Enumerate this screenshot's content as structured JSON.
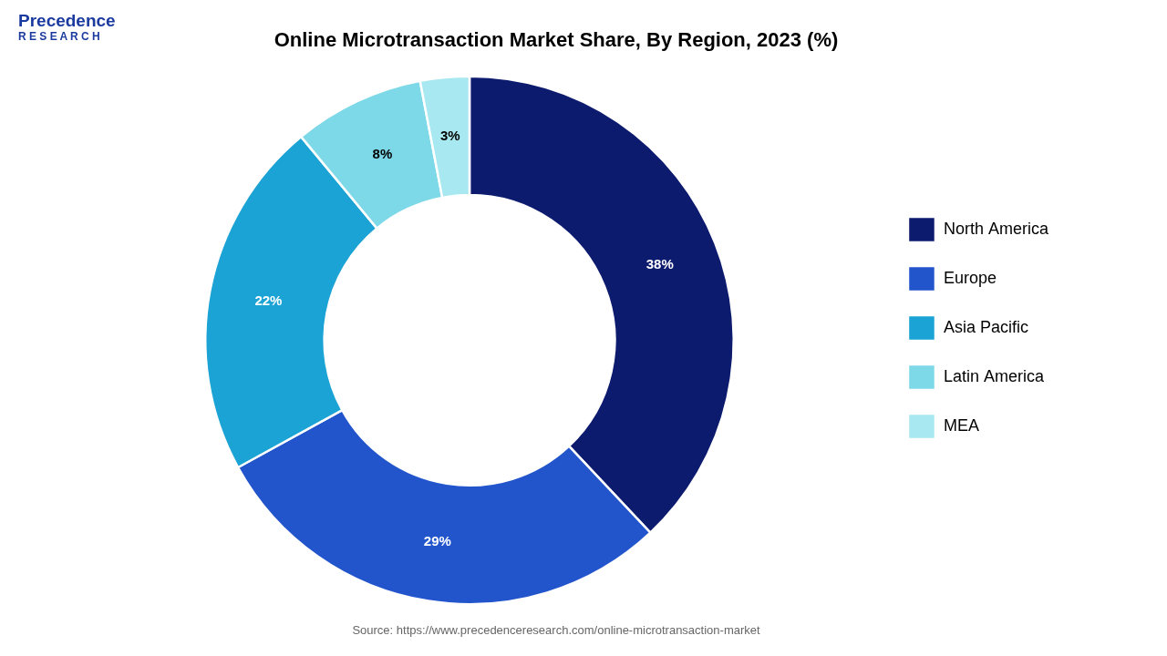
{
  "chart_data": {
    "type": "doughnut",
    "title": "Online Microtransaction Market Share, By Region, 2023 (%)",
    "categories": [
      "North America",
      "Europe",
      "Asia Pacific",
      "Latin America",
      "MEA"
    ],
    "values": [
      38,
      29,
      22,
      8,
      3
    ],
    "value_labels": [
      "38%",
      "29%",
      "22%",
      "8%",
      "3%"
    ],
    "colors": [
      "#0d1b6e",
      "#2255cc",
      "#1aa3d4",
      "#7dd8e8",
      "#a8e8f0"
    ],
    "data_labels": true,
    "legend": "right",
    "annotations": [
      "Precedence",
      "R E S E A R C H",
      "Source: https://www.precedenceresearch.com/online-microtransaction-market"
    ]
  }
}
